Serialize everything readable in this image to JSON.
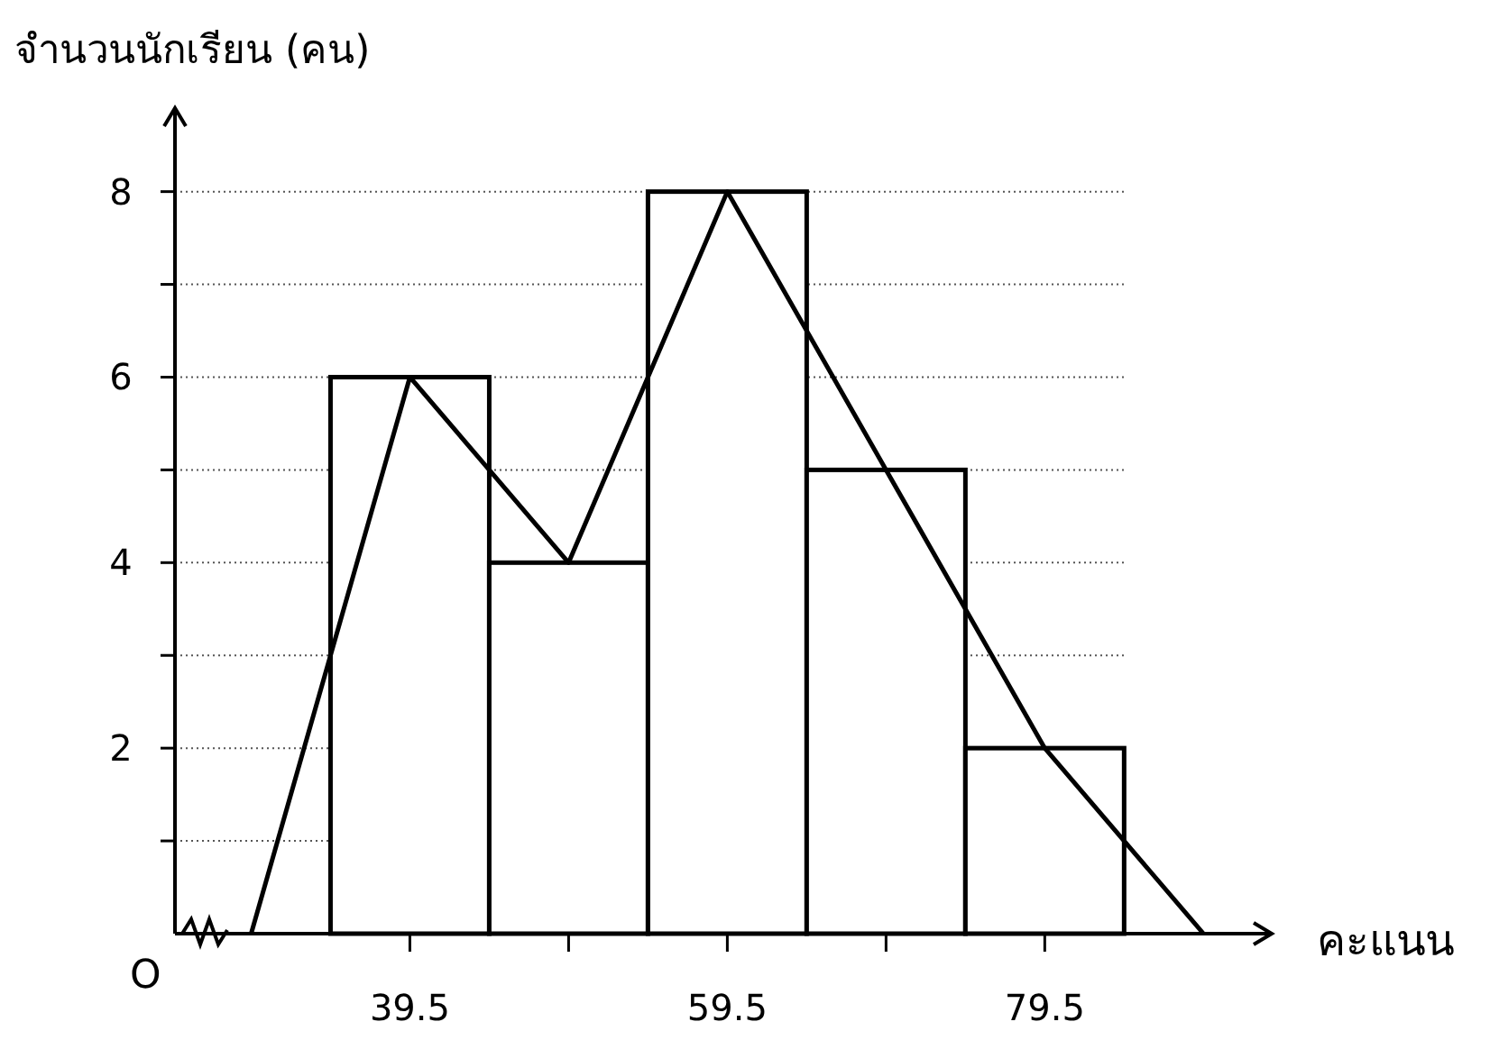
{
  "chart_data": {
    "type": "histogram",
    "ylabel": "จำนวนนักเรียน (คน)",
    "xlabel": "คะแนน",
    "annotations": [
      "O"
    ],
    "xlim": [
      24.7,
      93.8
    ],
    "ylim": [
      0,
      8.9
    ],
    "xticks": [
      39.5,
      {
        "value": 49.5,
        "label": null
      },
      59.5,
      {
        "value": 69.5,
        "label": null
      },
      79.5
    ],
    "yticks": [
      {
        "value": 1,
        "label": null
      },
      2,
      {
        "value": 3,
        "label": null
      },
      4,
      {
        "value": 5,
        "label": null
      },
      6,
      {
        "value": 7,
        "label": null
      },
      8
    ],
    "grid": "y",
    "marker": "none",
    "line_style": "solid",
    "series": [
      {
        "color": "#ffffff",
        "bins": [
          34.5,
          44.5,
          54.5,
          64.5,
          74.5,
          84.5
        ],
        "values": [
          6,
          4,
          8,
          5,
          2
        ]
      },
      {
        "type": "line",
        "color": "#000000",
        "x": [
          29.5,
          39.5,
          49.5,
          59.5,
          69.5,
          79.5,
          89.5
        ],
        "values": [
          0,
          6,
          4,
          8,
          5,
          2,
          0
        ]
      }
    ]
  }
}
